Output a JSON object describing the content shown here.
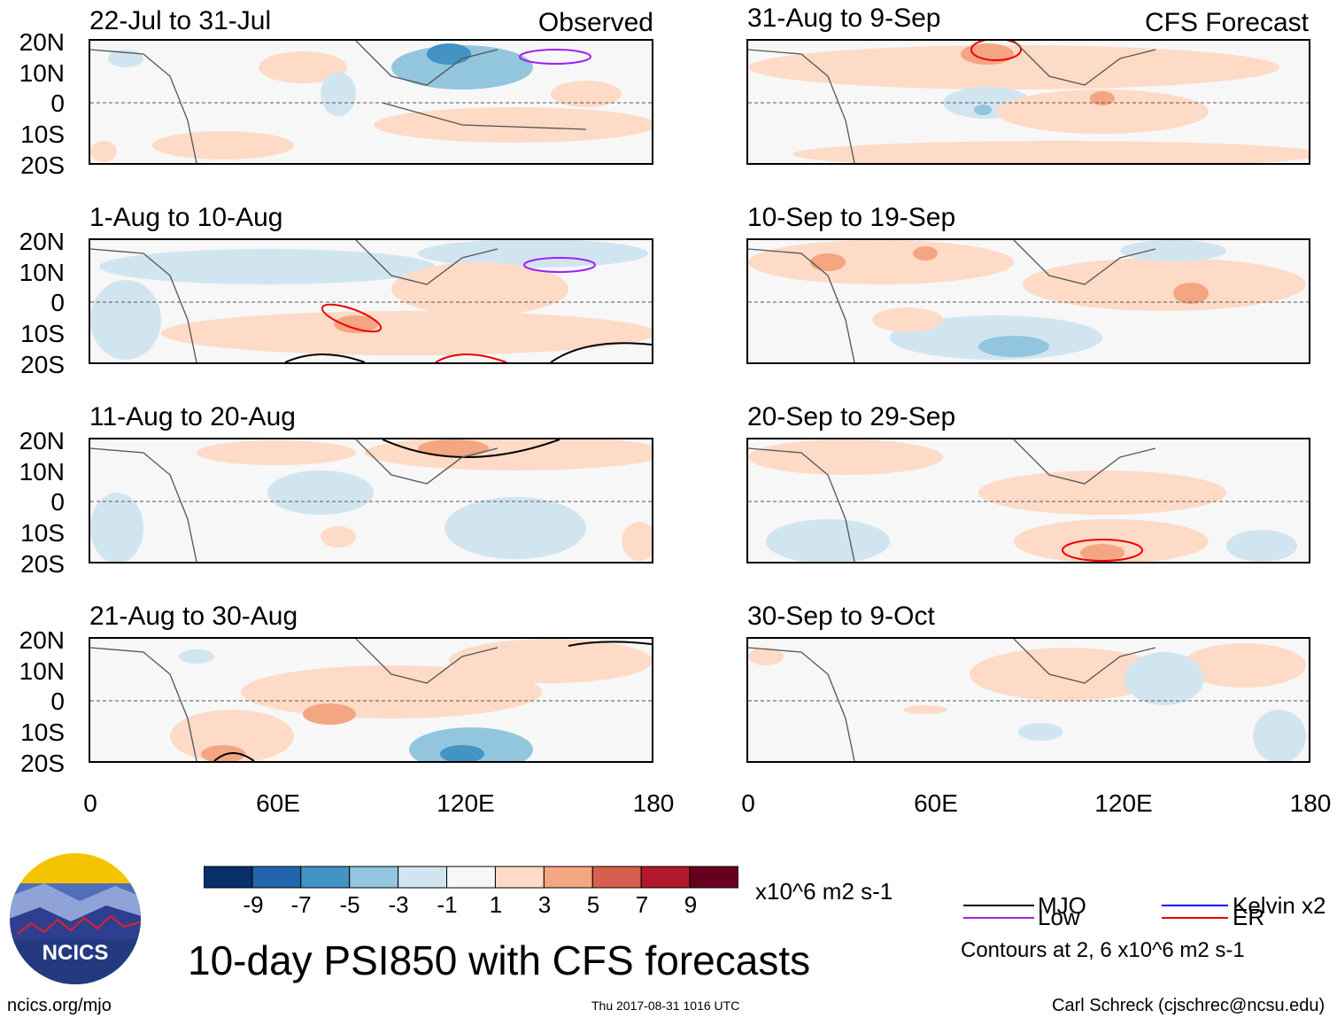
{
  "panels": [
    {
      "title": "22-Jul to 31-Jul",
      "tag": "Observed"
    },
    {
      "title": "1-Aug to 10-Aug",
      "tag": ""
    },
    {
      "title": "11-Aug to 20-Aug",
      "tag": ""
    },
    {
      "title": "21-Aug to 30-Aug",
      "tag": ""
    },
    {
      "title": "31-Aug to 9-Sep",
      "tag": "CFS Forecast"
    },
    {
      "title": "10-Sep to 19-Sep",
      "tag": ""
    },
    {
      "title": "20-Sep to 29-Sep",
      "tag": ""
    },
    {
      "title": "30-Sep to 9-Oct",
      "tag": ""
    }
  ],
  "lat_ticks": [
    "20N",
    "10N",
    "0",
    "10S",
    "20S"
  ],
  "lon_ticks": [
    "0",
    "60E",
    "120E",
    "180"
  ],
  "colorbar": {
    "labels": [
      "-9",
      "-7",
      "-5",
      "-3",
      "-1",
      "1",
      "3",
      "5",
      "7",
      "9"
    ],
    "colors": [
      "#08306b",
      "#2166ac",
      "#4393c3",
      "#92c5de",
      "#d1e5f0",
      "#f7f7f7",
      "#fddbc7",
      "#f4a582",
      "#d6604d",
      "#b2182b",
      "#67001f"
    ],
    "unit": "x10^6 m2 s-1"
  },
  "title": "10-day PSI850 with CFS forecasts",
  "legend": {
    "items": [
      {
        "label": "MJO",
        "color": "#000000"
      },
      {
        "label": "Kelvin x2",
        "color": "#0000ee"
      },
      {
        "label": "Low",
        "color": "#a020f0"
      },
      {
        "label": "ER",
        "color": "#ee0000"
      }
    ],
    "note": "Contours at 2, 6 x10^6 m2 s-1"
  },
  "logo_text": "NCICS",
  "footer": {
    "left": "ncics.org/mjo",
    "center": "Thu 2017-08-31 1016 UTC",
    "right": "Carl Schreck (cjschrec@ncsu.edu)"
  }
}
